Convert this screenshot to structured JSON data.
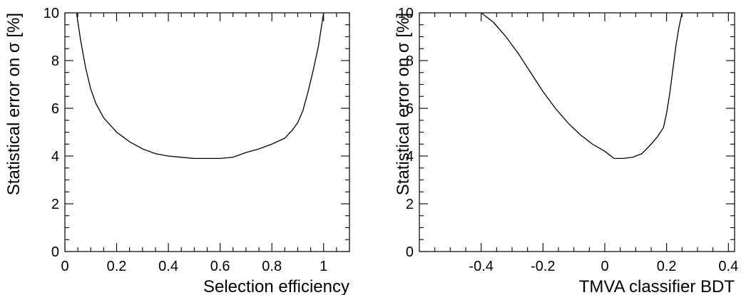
{
  "chart_data": [
    {
      "type": "line",
      "xlabel": "Selection efficiency",
      "ylabel": "Statistical error on σ [%]",
      "xlim": [
        0,
        1.1
      ],
      "ylim": [
        0,
        10
      ],
      "x_ticks": [
        0,
        0.2,
        0.4,
        0.6,
        0.8,
        1
      ],
      "x_tick_labels": [
        "0",
        "0.2",
        "0.4",
        "0.6",
        "0.8",
        "1"
      ],
      "y_ticks": [
        0,
        2,
        4,
        6,
        8,
        10
      ],
      "y_tick_labels": [
        "0",
        "2",
        "4",
        "6",
        "8",
        "10"
      ],
      "grid": false,
      "series": [
        {
          "x": [
            0.045,
            0.06,
            0.08,
            0.1,
            0.12,
            0.15,
            0.2,
            0.25,
            0.3,
            0.35,
            0.4,
            0.45,
            0.5,
            0.55,
            0.6,
            0.65,
            0.7,
            0.75,
            0.8,
            0.85,
            0.88,
            0.9,
            0.92,
            0.94,
            0.96,
            0.98,
            0.99,
            1.0
          ],
          "y": [
            10.0,
            8.9,
            7.7,
            6.8,
            6.2,
            5.6,
            5.0,
            4.6,
            4.3,
            4.1,
            4.0,
            3.95,
            3.9,
            3.9,
            3.9,
            3.95,
            4.15,
            4.3,
            4.5,
            4.75,
            5.1,
            5.4,
            5.9,
            6.7,
            7.6,
            8.6,
            9.3,
            10.0
          ]
        }
      ]
    },
    {
      "type": "line",
      "xlabel": "TMVA classifier BDT",
      "ylabel": "Statistical error on σ [%]",
      "xlim": [
        -0.6,
        0.42
      ],
      "ylim": [
        0,
        10
      ],
      "x_ticks": [
        -0.4,
        -0.2,
        0,
        0.2,
        0.4
      ],
      "x_tick_labels": [
        "-0.4",
        "-0.2",
        "0",
        "0.2",
        "0.4"
      ],
      "y_ticks": [
        0,
        2,
        4,
        6,
        8,
        10
      ],
      "y_tick_labels": [
        "0",
        "2",
        "4",
        "6",
        "8",
        "10"
      ],
      "grid": false,
      "series": [
        {
          "x": [
            -0.4,
            -0.36,
            -0.32,
            -0.28,
            -0.24,
            -0.2,
            -0.16,
            -0.12,
            -0.08,
            -0.04,
            0.0,
            0.03,
            0.06,
            0.09,
            0.12,
            0.15,
            0.17,
            0.19,
            0.2,
            0.21,
            0.22,
            0.23,
            0.24,
            0.25
          ],
          "y": [
            10.0,
            9.6,
            9.0,
            8.3,
            7.5,
            6.7,
            6.0,
            5.4,
            4.9,
            4.5,
            4.2,
            3.9,
            3.9,
            3.95,
            4.1,
            4.5,
            4.8,
            5.2,
            5.8,
            6.6,
            7.6,
            8.6,
            9.4,
            10.0
          ]
        }
      ]
    }
  ]
}
